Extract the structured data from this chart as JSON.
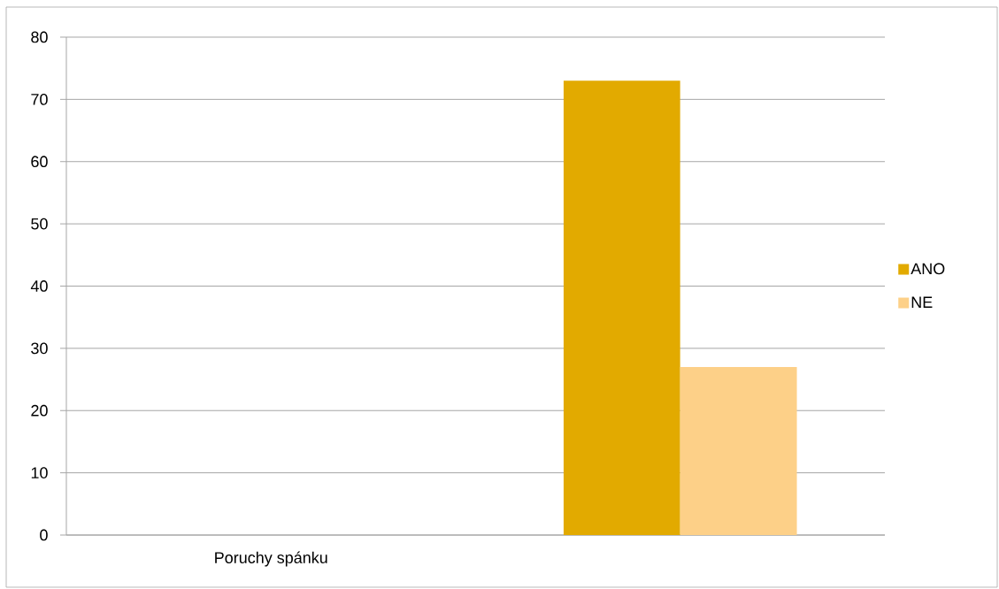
{
  "chart_data": {
    "type": "bar",
    "categories": [
      "Poruchy spánku",
      null
    ],
    "series": [
      {
        "name": "ANO",
        "color": "#e2aa00",
        "values": [
          null,
          73
        ]
      },
      {
        "name": "NE",
        "color": "#fdd088",
        "values": [
          null,
          27
        ]
      }
    ],
    "ylim": [
      0,
      80
    ],
    "yticks": [
      0,
      10,
      20,
      30,
      40,
      50,
      60,
      70,
      80
    ],
    "grid": "y",
    "legend": "right"
  }
}
